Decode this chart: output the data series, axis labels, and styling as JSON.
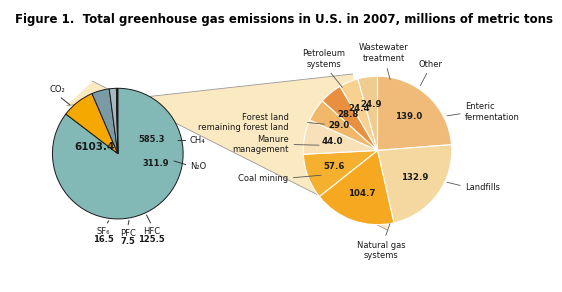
{
  "title": "Figure 1.  Total greenhouse gas emissions in U.S. in 2007, millions of metric tons",
  "left_pie": {
    "labels": [
      "CO₂",
      "CH₄",
      "N₂O",
      "HFC",
      "PFC",
      "SF₆"
    ],
    "values": [
      6103.4,
      585.3,
      311.9,
      125.5,
      7.5,
      16.5
    ],
    "colors": [
      "#82b8b5",
      "#f5a800",
      "#7a9aa5",
      "#a8b8c0",
      "#8898a8",
      "#505860"
    ],
    "value_labels": [
      "6103.4",
      "585.3",
      "311.9",
      "125.5",
      "7.5",
      "16.5"
    ]
  },
  "right_pie": {
    "labels": [
      "Enteric\nfermentation",
      "Landfills",
      "Natural gas\nsystems",
      "Coal mining",
      "Manure\nmanagement",
      "Forest land\nremaining forest land",
      "Petroleum\nsystems",
      "Wastewater\ntreatment",
      "Other"
    ],
    "values": [
      139.0,
      132.9,
      104.7,
      57.6,
      44.0,
      29.0,
      28.8,
      24.4,
      24.9
    ],
    "value_labels": [
      "139.0",
      "132.9",
      "104.7",
      "57.6",
      "44.0",
      "29.0",
      "28.8",
      "24.4",
      "24.9"
    ],
    "colors": [
      "#f0bb78",
      "#f5d8a0",
      "#f5a820",
      "#f5b030",
      "#f8e0b8",
      "#f0b868",
      "#e89040",
      "#f8d090",
      "#f0cc90"
    ]
  },
  "bg_color": "#ffffff",
  "title_fontsize": 8.5,
  "label_fontsize": 6.0,
  "value_fontsize": 6.5
}
